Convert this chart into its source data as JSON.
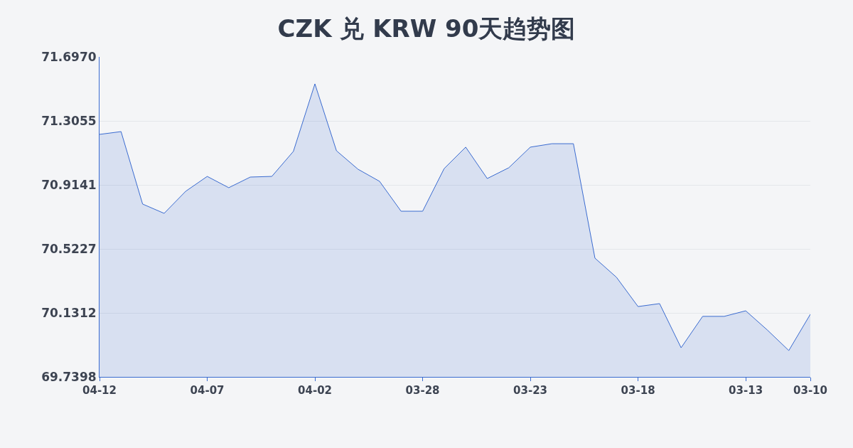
{
  "chart_data": {
    "type": "area",
    "title": "CZK 兑 KRW 90天趋势图",
    "x": [
      "--04-12",
      "--04-11",
      "--04-10",
      "--04-09",
      "--04-08",
      "--04-07",
      "--04-06",
      "--04-05",
      "--04-04",
      "--04-03",
      "--04-02",
      "--04-01",
      "--03-31",
      "--03-30",
      "--03-29",
      "--03-28",
      "--03-27",
      "--03-26",
      "--03-25",
      "--03-24",
      "--03-23",
      "--03-22",
      "--03-21",
      "--03-20",
      "--03-19",
      "--03-18",
      "--03-17",
      "--03-16",
      "--03-15",
      "--03-14",
      "--03-13",
      "--03-12",
      "--03-11",
      "--03-10"
    ],
    "series": [
      {
        "color": "#3a6bd0",
        "values": [
          71.223,
          71.24,
          70.797,
          70.74,
          70.875,
          70.966,
          70.897,
          70.962,
          70.966,
          71.119,
          71.532,
          71.123,
          71.01,
          70.936,
          70.753,
          70.753,
          71.014,
          71.145,
          70.953,
          71.019,
          71.145,
          71.166,
          71.166,
          70.466,
          70.349,
          70.17,
          70.188,
          69.918,
          70.11,
          70.11,
          70.144,
          70.027,
          69.901,
          70.123
        ]
      }
    ],
    "xlim": [
      "--04-12",
      "--03-10"
    ],
    "xticks": [
      {
        "value": "--04-12",
        "label": "04-12"
      },
      {
        "value": "--04-07",
        "label": "04-07"
      },
      {
        "value": "--04-02",
        "label": "04-02"
      },
      {
        "value": "--03-28",
        "label": "03-28"
      },
      {
        "value": "--03-23",
        "label": "03-23"
      },
      {
        "value": "--03-18",
        "label": "03-18"
      },
      {
        "value": "--03-13",
        "label": "03-13"
      },
      {
        "value": "--03-10",
        "label": "03-10"
      }
    ],
    "ylim": [
      69.7398,
      71.697
    ],
    "yticks": [
      69.7398,
      70.1312,
      70.5227,
      70.9141,
      71.3055,
      {
        "value": 71.697,
        "label": "71.6970"
      }
    ],
    "grid": "y",
    "marker": "none",
    "line_style": "solid"
  }
}
